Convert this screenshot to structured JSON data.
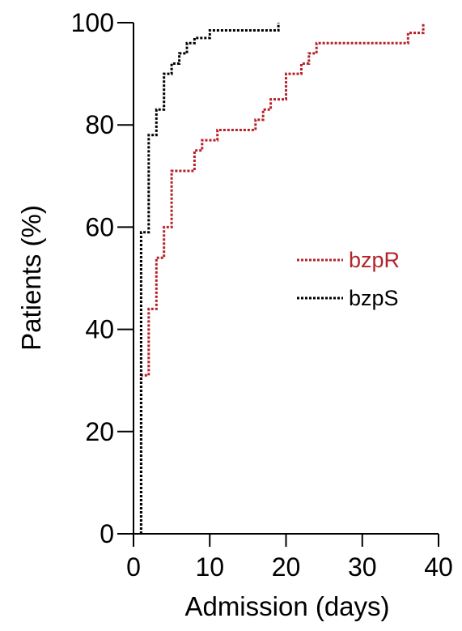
{
  "chart_data": {
    "type": "line",
    "subtype": "step",
    "title": "",
    "xlabel": "Admission (days)",
    "ylabel": "Patients (%)",
    "xlim": [
      0,
      40
    ],
    "ylim": [
      0,
      100
    ],
    "x_ticks": [
      "0",
      "10",
      "20",
      "30",
      "40"
    ],
    "y_ticks": [
      "0",
      "20",
      "40",
      "60",
      "80",
      "100"
    ],
    "grid": false,
    "legend_position": "right-middle",
    "series": [
      {
        "name": "bzpR",
        "color": "#b5232a",
        "line_style": "dotted",
        "points": [
          [
            1,
            0
          ],
          [
            1,
            31
          ],
          [
            2,
            31
          ],
          [
            2,
            44
          ],
          [
            3,
            44
          ],
          [
            3,
            54
          ],
          [
            4,
            54
          ],
          [
            4,
            60
          ],
          [
            5,
            60
          ],
          [
            5,
            71
          ],
          [
            8,
            71
          ],
          [
            8,
            75
          ],
          [
            9,
            75
          ],
          [
            9,
            77
          ],
          [
            11,
            77
          ],
          [
            11,
            79
          ],
          [
            16,
            79
          ],
          [
            16,
            81
          ],
          [
            17,
            81
          ],
          [
            17,
            83
          ],
          [
            18,
            83
          ],
          [
            18,
            85
          ],
          [
            20,
            85
          ],
          [
            20,
            90
          ],
          [
            22,
            90
          ],
          [
            22,
            92
          ],
          [
            23,
            92
          ],
          [
            23,
            94
          ],
          [
            24,
            94
          ],
          [
            24,
            96
          ],
          [
            36,
            96
          ],
          [
            36,
            98
          ],
          [
            38,
            98
          ],
          [
            38,
            100
          ]
        ]
      },
      {
        "name": "bzpS",
        "color": "#000000",
        "line_style": "dotted",
        "points": [
          [
            1,
            0
          ],
          [
            1,
            59
          ],
          [
            2,
            59
          ],
          [
            2,
            78
          ],
          [
            3,
            78
          ],
          [
            3,
            83
          ],
          [
            4,
            83
          ],
          [
            4,
            90
          ],
          [
            5,
            90
          ],
          [
            5,
            92
          ],
          [
            6,
            92
          ],
          [
            6,
            94
          ],
          [
            7,
            94
          ],
          [
            7,
            96
          ],
          [
            8,
            96
          ],
          [
            8,
            97
          ],
          [
            10,
            97
          ],
          [
            10,
            98.5
          ],
          [
            19,
            98.5
          ],
          [
            19,
            100
          ]
        ]
      }
    ]
  }
}
